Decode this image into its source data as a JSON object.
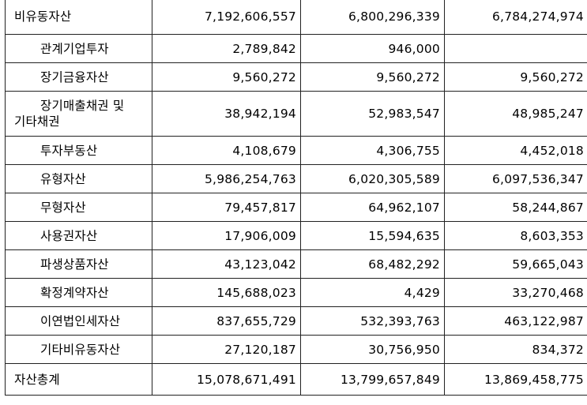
{
  "rows": [
    {
      "label": "비유동자산",
      "indent": 0,
      "v1": "7,192,606,557",
      "v2": "6,800,296,339",
      "v3": "6,784,274,974"
    },
    {
      "label": "관계기업투자",
      "indent": 1,
      "v1": "2,789,842",
      "v2": "946,000",
      "v3": ""
    },
    {
      "label": "장기금융자산",
      "indent": 1,
      "v1": "9,560,272",
      "v2": "9,560,272",
      "v3": "9,560,272"
    },
    {
      "label_line1": "장기매출채권 및",
      "label_line2": "기타채권",
      "indent": 2,
      "v1": "38,942,194",
      "v2": "52,983,547",
      "v3": "48,985,247"
    },
    {
      "label": "투자부동산",
      "indent": 1,
      "v1": "4,108,679",
      "v2": "4,306,755",
      "v3": "4,452,018"
    },
    {
      "label": "유형자산",
      "indent": 1,
      "v1": "5,986,254,763",
      "v2": "6,020,305,589",
      "v3": "6,097,536,347"
    },
    {
      "label": "무형자산",
      "indent": 1,
      "v1": "79,457,817",
      "v2": "64,962,107",
      "v3": "58,244,867"
    },
    {
      "label": "사용권자산",
      "indent": 1,
      "v1": "17,906,009",
      "v2": "15,594,635",
      "v3": "8,603,353"
    },
    {
      "label": "파생상품자산",
      "indent": 1,
      "v1": "43,123,042",
      "v2": "68,482,292",
      "v3": "59,665,043"
    },
    {
      "label": "확정계약자산",
      "indent": 1,
      "v1": "145,688,023",
      "v2": "4,429",
      "v3": "33,270,468"
    },
    {
      "label": "이연법인세자산",
      "indent": 1,
      "v1": "837,655,729",
      "v2": "532,393,763",
      "v3": "463,122,987"
    },
    {
      "label": "기타비유동자산",
      "indent": 1,
      "v1": "27,120,187",
      "v2": "30,756,950",
      "v3": "834,372"
    },
    {
      "label": "자산총계",
      "indent": 0,
      "v1": "15,078,671,491",
      "v2": "13,799,657,849",
      "v3": "13,869,458,775"
    }
  ]
}
